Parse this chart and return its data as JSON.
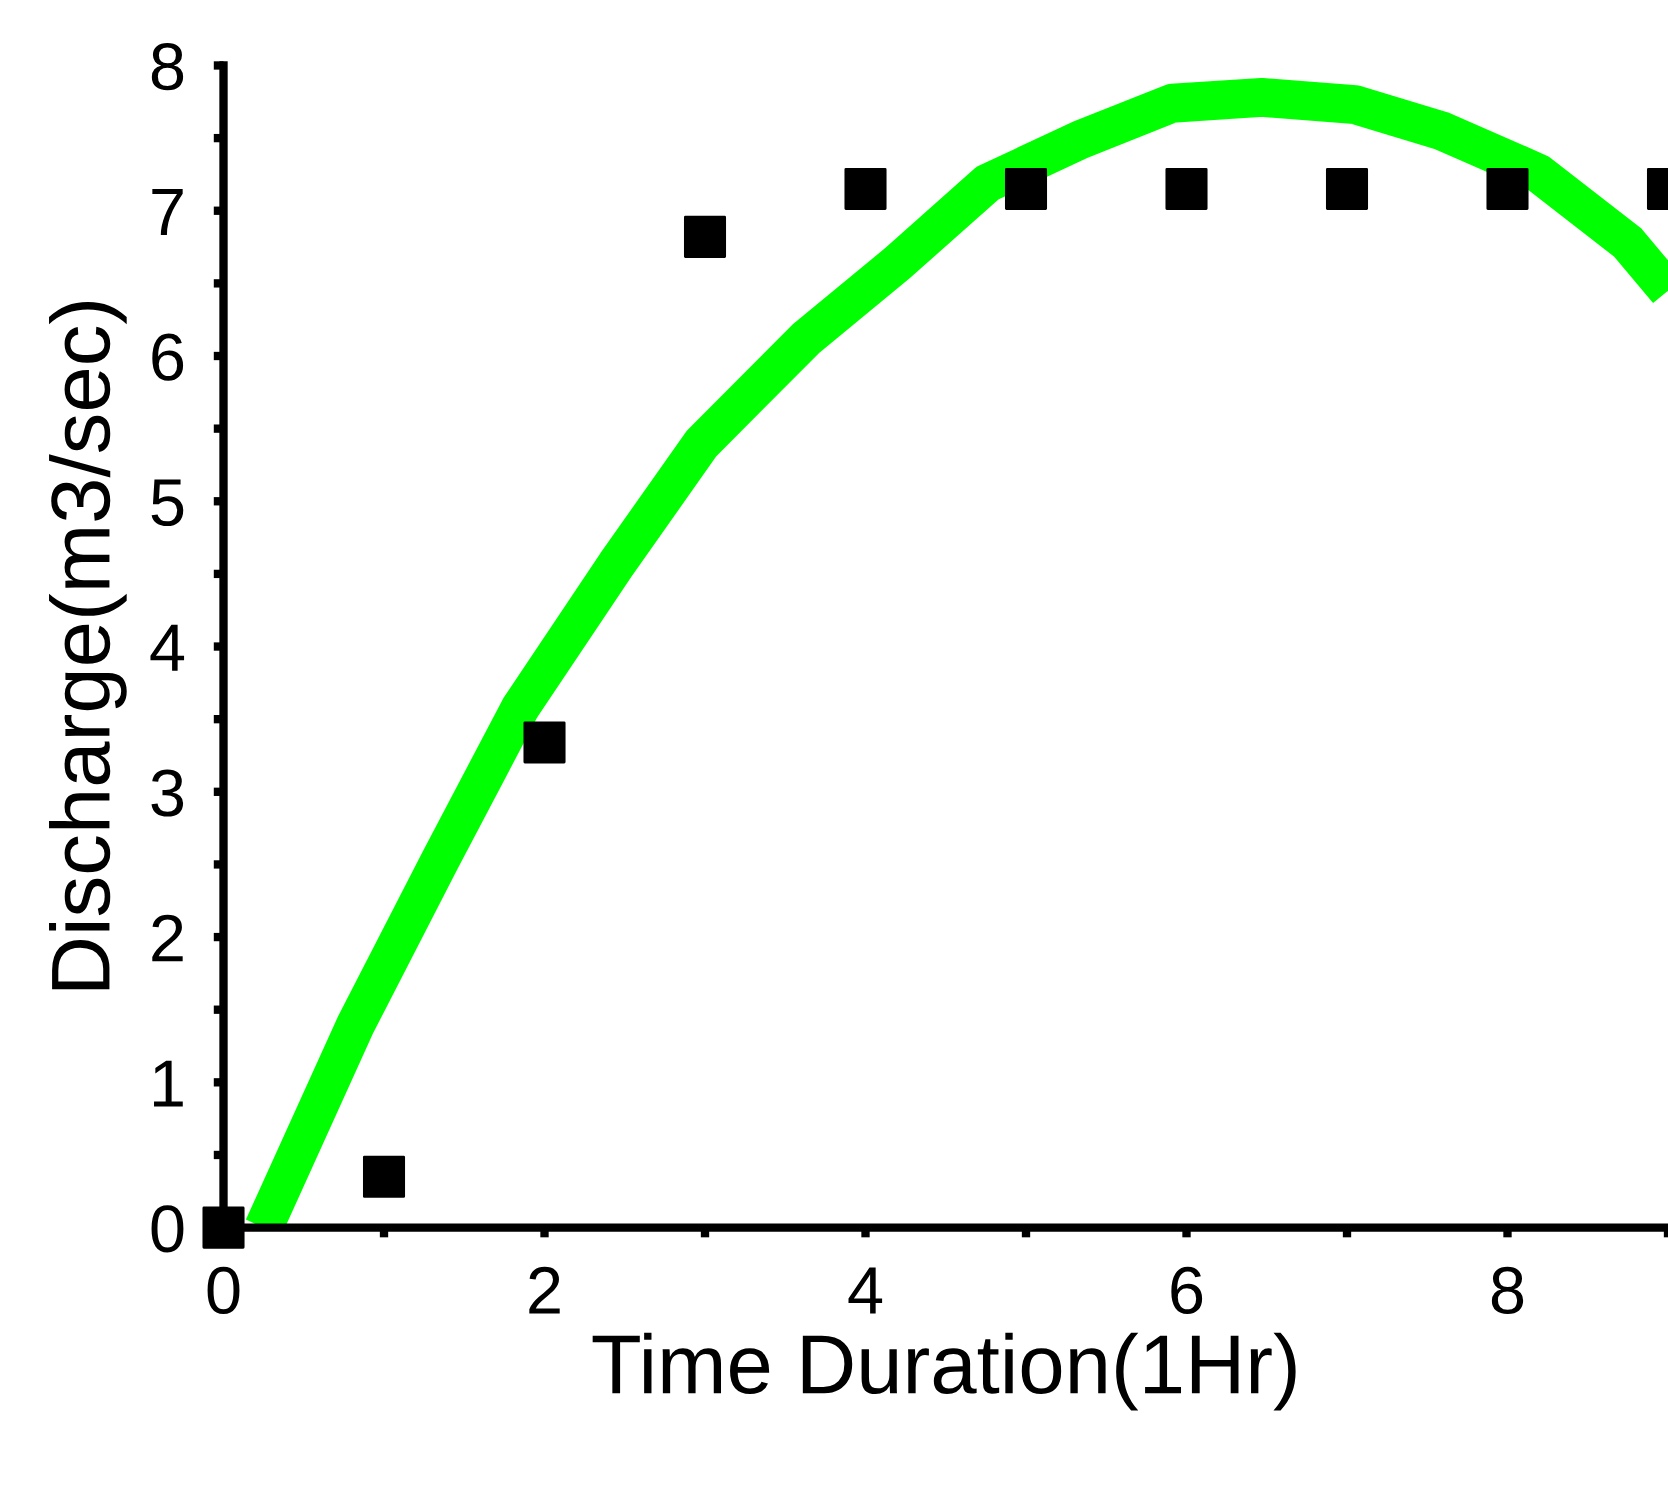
{
  "chart_data": {
    "type": "scatter",
    "xlabel": "Time Duration(1Hr)",
    "ylabel": "Discharge(m3/sec)",
    "xlim": [
      0,
      9
    ],
    "ylim": [
      0,
      8
    ],
    "xticks": [
      0,
      {
        "value": 1,
        "label": null
      },
      2,
      {
        "value": 3,
        "label": null
      },
      4,
      {
        "value": 5,
        "label": null
      },
      6,
      {
        "value": 7,
        "label": null
      },
      8,
      {
        "value": 9,
        "label": null
      }
    ],
    "yticks": [
      0,
      {
        "value": 0.5,
        "label": null
      },
      1,
      {
        "value": 1.5,
        "label": null
      },
      2,
      {
        "value": 2.5,
        "label": null
      },
      3,
      {
        "value": 3.5,
        "label": null
      },
      4,
      {
        "value": 4.5,
        "label": null
      },
      5,
      {
        "value": 5.5,
        "label": null
      },
      6,
      {
        "value": 6.5,
        "label": null
      },
      7,
      {
        "value": 7.5,
        "label": null
      },
      8
    ],
    "grid": false,
    "legend": false,
    "series": [
      {
        "type": "line",
        "color": "#00ff00",
        "marker": "none",
        "line_style": "solid",
        "x": [
          0.25,
          0.82,
          1.35,
          1.85,
          2.45,
          2.98,
          3.63,
          4.2,
          4.76,
          5.34,
          5.91,
          6.47,
          7.05,
          7.59,
          8.19,
          8.75,
          9.0
        ],
        "values": [
          0,
          1.39,
          2.53,
          3.58,
          4.57,
          5.4,
          6.12,
          6.64,
          7.19,
          7.49,
          7.74,
          7.78,
          7.73,
          7.55,
          7.26,
          6.78,
          6.45
        ]
      },
      {
        "color": "#000000",
        "marker": "square",
        "x": [
          0,
          1,
          2,
          3,
          4,
          5,
          6,
          7,
          8,
          9
        ],
        "values": [
          0,
          0.35,
          3.34,
          6.82,
          7.15,
          7.15,
          7.15,
          7.15,
          7.15,
          7.15
        ]
      }
    ]
  }
}
